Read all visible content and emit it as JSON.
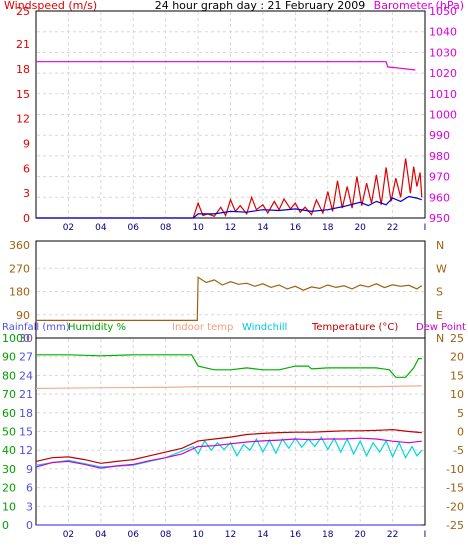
{
  "chart_data": [
    {
      "type": "line",
      "title": "24 hour graph day : 21 February 2009",
      "left_label": "Windspeed (m/s)",
      "right_label": "Barometer (hPa)",
      "x_ticks": [
        "02",
        "04",
        "06",
        "08",
        "10",
        "12",
        "14",
        "16",
        "18",
        "20",
        "22",
        "I"
      ],
      "left_ticks": [
        "0",
        "3",
        "6",
        "9",
        "12",
        "15",
        "18",
        "21",
        "25"
      ],
      "right_ticks": [
        "950",
        "960",
        "970",
        "980",
        "990",
        "1000",
        "1010",
        "1020",
        "1030",
        "1040",
        "1050"
      ],
      "left_range": [
        0,
        25
      ],
      "right_range": [
        950,
        1050
      ],
      "series": [
        {
          "key": "barometer",
          "axis": "right",
          "color": "#e000e0",
          "points": [
            [
              0,
              1025.5
            ],
            [
              21.6,
              1025.5
            ],
            [
              21.7,
              1023
            ],
            [
              22.5,
              1022.3
            ],
            [
              23.4,
              1021.5
            ]
          ]
        },
        {
          "key": "gust",
          "axis": "left",
          "color": "#e00000",
          "points": [
            [
              0,
              0
            ],
            [
              9.7,
              0
            ],
            [
              10,
              1.8
            ],
            [
              10.3,
              0.3
            ],
            [
              10.6,
              0.5
            ],
            [
              11,
              0.2
            ],
            [
              11.4,
              1.3
            ],
            [
              11.7,
              0.3
            ],
            [
              12,
              2.2
            ],
            [
              12.3,
              0.8
            ],
            [
              12.6,
              1.5
            ],
            [
              13,
              0.5
            ],
            [
              13.3,
              2.5
            ],
            [
              13.6,
              1.0
            ],
            [
              14,
              1.6
            ],
            [
              14.3,
              0.6
            ],
            [
              14.7,
              2.0
            ],
            [
              15,
              1.0
            ],
            [
              15.3,
              2.3
            ],
            [
              15.7,
              1.1
            ],
            [
              16,
              1.8
            ],
            [
              16.3,
              0.7
            ],
            [
              16.6,
              1.3
            ],
            [
              17,
              0.4
            ],
            [
              17.3,
              2.2
            ],
            [
              17.7,
              0.6
            ],
            [
              18,
              3.2
            ],
            [
              18.3,
              0.8
            ],
            [
              18.6,
              4.5
            ],
            [
              18.9,
              1.2
            ],
            [
              19.2,
              3.8
            ],
            [
              19.5,
              1.2
            ],
            [
              19.8,
              5.0
            ],
            [
              20.1,
              1.5
            ],
            [
              20.4,
              4.2
            ],
            [
              20.7,
              1.8
            ],
            [
              21,
              5.2
            ],
            [
              21.3,
              1.6
            ],
            [
              21.6,
              6.1
            ],
            [
              21.9,
              2.0
            ],
            [
              22.2,
              4.8
            ],
            [
              22.5,
              2.5
            ],
            [
              22.8,
              7.2
            ],
            [
              23.1,
              3.0
            ],
            [
              23.3,
              6.2
            ],
            [
              23.5,
              3.8
            ],
            [
              23.7,
              5.5
            ],
            [
              23.8,
              2.5
            ]
          ]
        },
        {
          "key": "windspeed",
          "axis": "left",
          "color": "#0000d0",
          "points": [
            [
              0,
              0
            ],
            [
              9.7,
              0
            ],
            [
              10,
              0.5
            ],
            [
              11,
              0.5
            ],
            [
              12,
              0.8
            ],
            [
              13,
              0.7
            ],
            [
              14,
              1.0
            ],
            [
              15,
              0.9
            ],
            [
              16,
              1.1
            ],
            [
              17,
              0.8
            ],
            [
              18,
              1.0
            ],
            [
              19,
              1.4
            ],
            [
              20,
              1.9
            ],
            [
              20.5,
              1.5
            ],
            [
              21,
              2.0
            ],
            [
              21.6,
              1.6
            ],
            [
              22,
              2.4
            ],
            [
              22.5,
              2.0
            ],
            [
              23,
              2.6
            ],
            [
              23.5,
              2.4
            ],
            [
              23.8,
              2.2
            ]
          ]
        }
      ]
    },
    {
      "type": "line",
      "title": "",
      "left_ticks": [
        "0",
        "90",
        "180",
        "270",
        "360"
      ],
      "right_ticks": [
        "N",
        "E",
        "S",
        "W",
        "N"
      ],
      "left_range": [
        0,
        360
      ],
      "x_ticks": [],
      "series": [
        {
          "key": "wind_direction",
          "color": "#a06010",
          "points": [
            [
              0,
              68
            ],
            [
              9.95,
              68
            ],
            [
              10,
              235
            ],
            [
              10.5,
              215
            ],
            [
              11,
              225
            ],
            [
              11.5,
              205
            ],
            [
              12,
              218
            ],
            [
              12.5,
              208
            ],
            [
              13,
              212
            ],
            [
              13.5,
              200
            ],
            [
              14,
              210
            ],
            [
              14.5,
              196
            ],
            [
              15,
              205
            ],
            [
              15.5,
              190
            ],
            [
              16,
              200
            ],
            [
              16.5,
              185
            ],
            [
              17,
              198
            ],
            [
              17.5,
              192
            ],
            [
              18,
              205
            ],
            [
              18.5,
              196
            ],
            [
              19,
              202
            ],
            [
              19.5,
              190
            ],
            [
              20,
              205
            ],
            [
              20.5,
              198
            ],
            [
              21,
              210
            ],
            [
              21.5,
              195
            ],
            [
              22,
              206
            ],
            [
              22.5,
              200
            ],
            [
              23,
              204
            ],
            [
              23.5,
              190
            ],
            [
              23.8,
              203
            ]
          ]
        }
      ]
    },
    {
      "type": "line",
      "title": "",
      "labels": {
        "rainfall": "Rainfall (mm)",
        "humidity": "Humidity %",
        "indoor": "Indoor temp",
        "windchill": "Windchill",
        "temperature": "Temperature (°C)",
        "dewpoint": "Dew Point"
      },
      "rain_ticks": [
        "0",
        "3",
        "6",
        "9",
        "12",
        "15",
        "18",
        "21",
        "24",
        "27",
        "30"
      ],
      "humidity_ticks": [
        "0",
        "10",
        "20",
        "30",
        "40",
        "50",
        "60",
        "70",
        "80",
        "90",
        "100"
      ],
      "temp_ticks": [
        "-25",
        "-20",
        "-15",
        "-10",
        "-5",
        "0",
        "5",
        "10",
        "15",
        "20",
        "25"
      ],
      "temp_range": [
        -25,
        25
      ],
      "humidity_range": [
        0,
        100
      ],
      "x_ticks": [
        "02",
        "04",
        "06",
        "08",
        "10",
        "12",
        "14",
        "16",
        "18",
        "20",
        "22",
        "I"
      ],
      "series": [
        {
          "key": "rainfall",
          "axis": "rain",
          "color": "#5050e0",
          "points": [
            [
              0,
              0
            ],
            [
              23.8,
              0
            ]
          ]
        },
        {
          "key": "humidity",
          "axis": "humidity",
          "color": "#00b000",
          "points": [
            [
              0,
              91
            ],
            [
              2,
              91
            ],
            [
              4,
              90.5
            ],
            [
              6,
              91
            ],
            [
              8,
              91
            ],
            [
              9.6,
              91
            ],
            [
              10,
              85
            ],
            [
              11,
              83
            ],
            [
              12,
              83
            ],
            [
              13,
              84
            ],
            [
              14,
              83
            ],
            [
              15,
              83
            ],
            [
              16,
              85
            ],
            [
              16.8,
              85
            ],
            [
              17,
              83.5
            ],
            [
              18,
              84
            ],
            [
              19,
              84
            ],
            [
              20,
              84
            ],
            [
              21,
              84
            ],
            [
              21.8,
              83
            ],
            [
              22.2,
              79
            ],
            [
              22.8,
              79
            ],
            [
              23.3,
              84
            ],
            [
              23.6,
              89
            ],
            [
              23.8,
              89
            ]
          ]
        },
        {
          "key": "indoor",
          "axis": "temp",
          "color": "#f0b090",
          "points": [
            [
              0,
              11.5
            ],
            [
              4,
              11.7
            ],
            [
              8,
              11.8
            ],
            [
              10,
              12
            ],
            [
              14,
              12
            ],
            [
              18,
              12
            ],
            [
              21,
              12
            ],
            [
              23.8,
              12.2
            ]
          ]
        },
        {
          "key": "windchill",
          "axis": "temp",
          "color": "#00d8e0",
          "points": [
            [
              0,
              -9
            ],
            [
              2,
              -7.7
            ],
            [
              4,
              -9.5
            ],
            [
              6,
              -9
            ],
            [
              8,
              -7
            ],
            [
              9.7,
              -4
            ],
            [
              10,
              -6
            ],
            [
              10.4,
              -2.5
            ],
            [
              10.8,
              -5
            ],
            [
              11.2,
              -3
            ],
            [
              11.6,
              -4.8
            ],
            [
              12,
              -3
            ],
            [
              12.4,
              -6.5
            ],
            [
              12.8,
              -3.5
            ],
            [
              13.2,
              -5
            ],
            [
              13.6,
              -2
            ],
            [
              14,
              -5.5
            ],
            [
              14.4,
              -2.3
            ],
            [
              14.8,
              -5.8
            ],
            [
              15.2,
              -2
            ],
            [
              15.6,
              -4.5
            ],
            [
              16,
              -1.8
            ],
            [
              16.4,
              -4.2
            ],
            [
              16.8,
              -2
            ],
            [
              17.2,
              -4
            ],
            [
              17.6,
              -1.5
            ],
            [
              18,
              -4.8
            ],
            [
              18.4,
              -1.8
            ],
            [
              18.8,
              -5.5
            ],
            [
              19.2,
              -2
            ],
            [
              19.6,
              -6
            ],
            [
              20,
              -2.5
            ],
            [
              20.4,
              -6.5
            ],
            [
              20.8,
              -3
            ],
            [
              21.2,
              -5.5
            ],
            [
              21.6,
              -2.5
            ],
            [
              22,
              -6.8
            ],
            [
              22.4,
              -3
            ],
            [
              22.8,
              -7
            ],
            [
              23.2,
              -4
            ],
            [
              23.5,
              -6.5
            ],
            [
              23.8,
              -5
            ]
          ]
        },
        {
          "key": "temperature",
          "axis": "temp",
          "color": "#c00000",
          "points": [
            [
              0,
              -8
            ],
            [
              1,
              -7
            ],
            [
              2,
              -6.8
            ],
            [
              3,
              -7.5
            ],
            [
              4,
              -8.5
            ],
            [
              5,
              -8
            ],
            [
              6,
              -7.5
            ],
            [
              7,
              -6.5
            ],
            [
              8,
              -5.5
            ],
            [
              9,
              -4.5
            ],
            [
              10,
              -2.5
            ],
            [
              11,
              -2
            ],
            [
              12,
              -1.5
            ],
            [
              13,
              -0.8
            ],
            [
              14,
              -0.5
            ],
            [
              15,
              -0.3
            ],
            [
              16,
              -0.2
            ],
            [
              17,
              -0.2
            ],
            [
              18,
              0
            ],
            [
              19,
              0.2
            ],
            [
              20,
              0.2
            ],
            [
              21,
              0.3
            ],
            [
              22,
              0.5
            ],
            [
              23,
              0
            ],
            [
              23.8,
              -0.3
            ]
          ]
        },
        {
          "key": "dewpoint",
          "axis": "temp",
          "color": "#d000d0",
          "points": [
            [
              0,
              -9.5
            ],
            [
              1,
              -8.3
            ],
            [
              2,
              -8
            ],
            [
              3,
              -8.8
            ],
            [
              4,
              -9.8
            ],
            [
              5,
              -9.2
            ],
            [
              6,
              -8.8
            ],
            [
              7,
              -7.8
            ],
            [
              8,
              -7
            ],
            [
              9,
              -6
            ],
            [
              10,
              -4
            ],
            [
              11,
              -3.8
            ],
            [
              12,
              -3.3
            ],
            [
              13,
              -2.8
            ],
            [
              14,
              -2.5
            ],
            [
              15,
              -2.3
            ],
            [
              16,
              -2
            ],
            [
              17,
              -2.2
            ],
            [
              18,
              -2
            ],
            [
              19,
              -2
            ],
            [
              20,
              -1.8
            ],
            [
              21,
              -2
            ],
            [
              22,
              -2.6
            ],
            [
              23,
              -3
            ],
            [
              23.8,
              -2.6
            ]
          ]
        }
      ]
    }
  ]
}
